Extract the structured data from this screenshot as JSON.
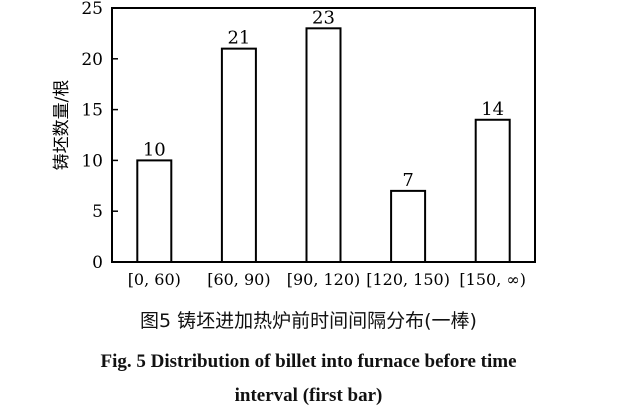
{
  "chart_data": {
    "type": "bar",
    "categories": [
      "[0, 60)",
      "[60, 90)",
      "[90, 120)",
      "[120, 150)",
      "[150, ∞)"
    ],
    "values": [
      10,
      21,
      23,
      7,
      14
    ],
    "data_labels": [
      "10",
      "21",
      "23",
      "7",
      "14"
    ],
    "ylabel": "铸坯数量/根",
    "xlabel": "",
    "ylim": [
      0,
      25
    ],
    "yticks": [
      0,
      5,
      10,
      15,
      20,
      25
    ],
    "grid": false,
    "legend": "none",
    "colors": {
      "bar_fill": "#ffffff",
      "bar_stroke": "#000000"
    }
  },
  "caption": {
    "chinese": "图5   铸坯进加热炉前时间间隔分布(一棒)",
    "english_line1": "Fig. 5    Distribution of billet into furnace before time",
    "english_line2": "interval (first bar)"
  }
}
